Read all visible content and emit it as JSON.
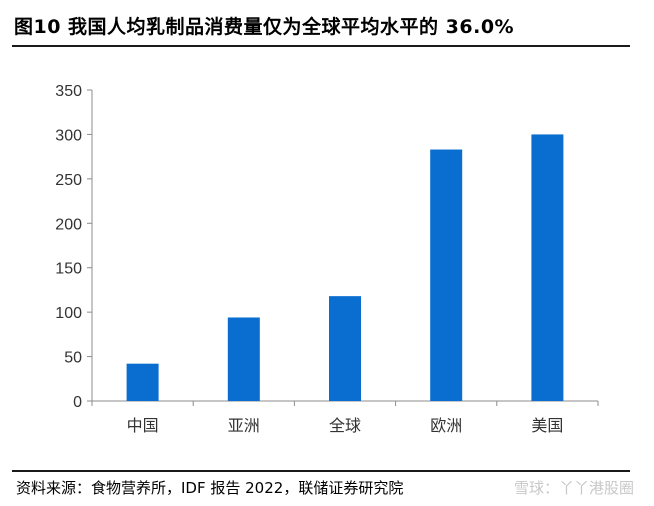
{
  "title": "图10 我国人均乳制品消费量仅为全球平均水平的 36.0%",
  "source": "资料来源：食物营养所，IDF 报告 2022，联储证券研究院",
  "watermark": "雪球：丫丫港股圈",
  "chart_data": {
    "type": "bar",
    "categories": [
      "中国",
      "亚洲",
      "全球",
      "欧洲",
      "美国"
    ],
    "values": [
      42,
      94,
      118,
      283,
      300
    ],
    "ylim": [
      0,
      350
    ],
    "yticks": [
      0,
      50,
      100,
      150,
      200,
      250,
      300,
      350
    ],
    "bar_color": "#0a6ed1",
    "grid": false
  }
}
